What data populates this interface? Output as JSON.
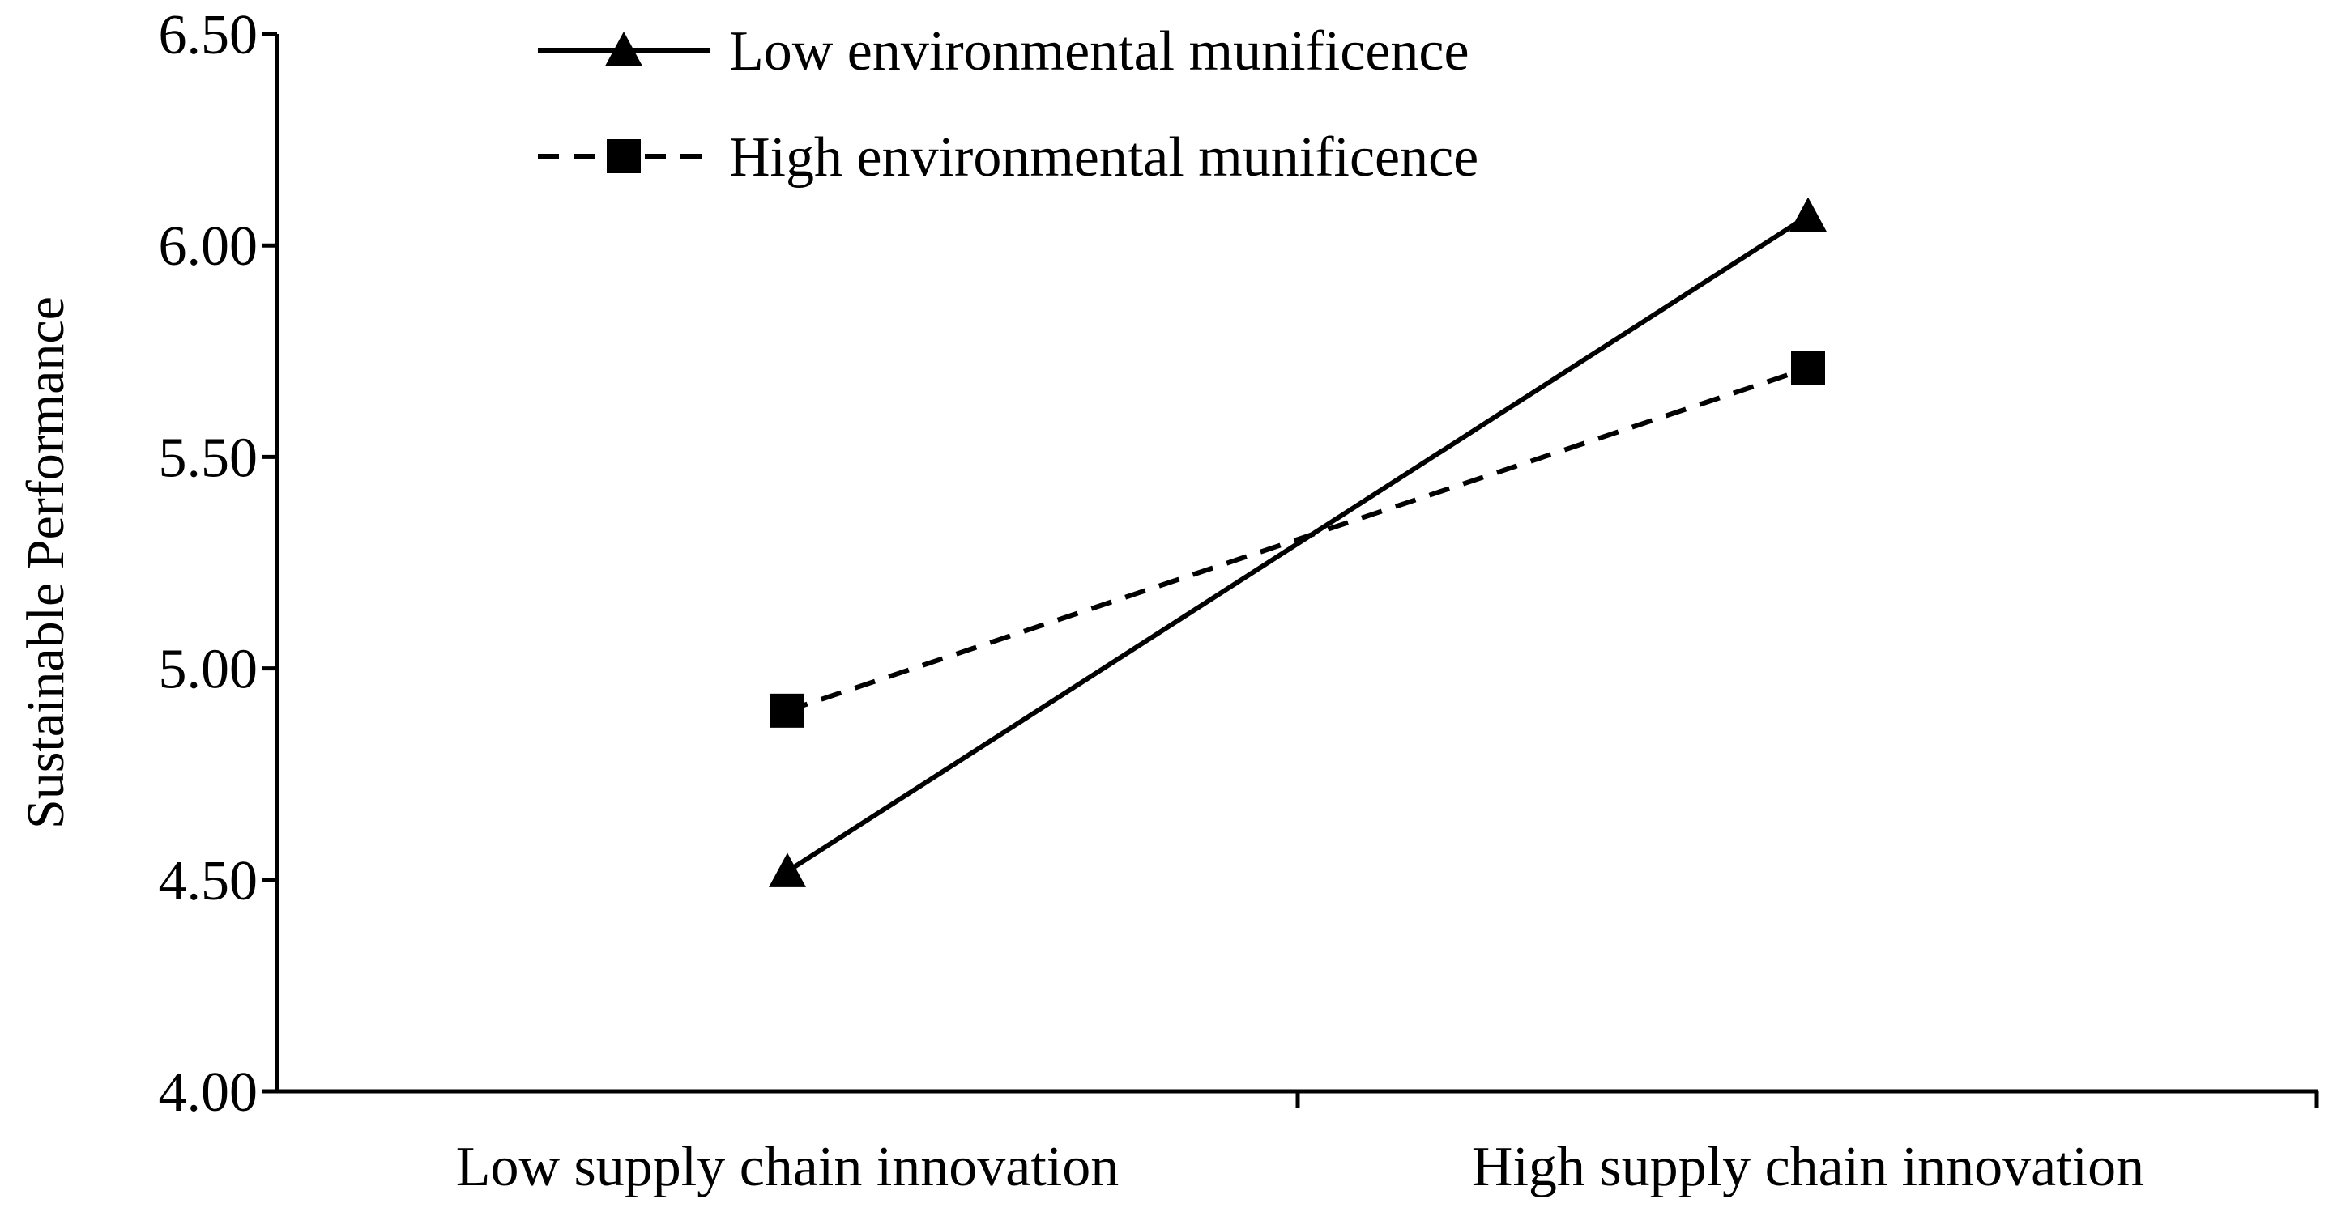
{
  "chart_data": {
    "type": "line",
    "ylabel": "Sustainable Performance",
    "xlabel": "",
    "categories": [
      "Low supply chain innovation",
      "High supply chain innovation"
    ],
    "ylim": [
      4.0,
      6.5
    ],
    "yticks": [
      "4.00",
      "4.50",
      "5.00",
      "5.50",
      "6.00",
      "6.50"
    ],
    "grid": false,
    "legend_position": "top-left",
    "series": [
      {
        "name": "Low environmental munificence",
        "values": [
          4.52,
          6.07
        ],
        "line_style": "solid",
        "marker": "triangle",
        "color": "#000000"
      },
      {
        "name": "High environmental munificence",
        "values": [
          4.9,
          5.71
        ],
        "line_style": "dashed",
        "marker": "square",
        "color": "#000000"
      }
    ]
  }
}
